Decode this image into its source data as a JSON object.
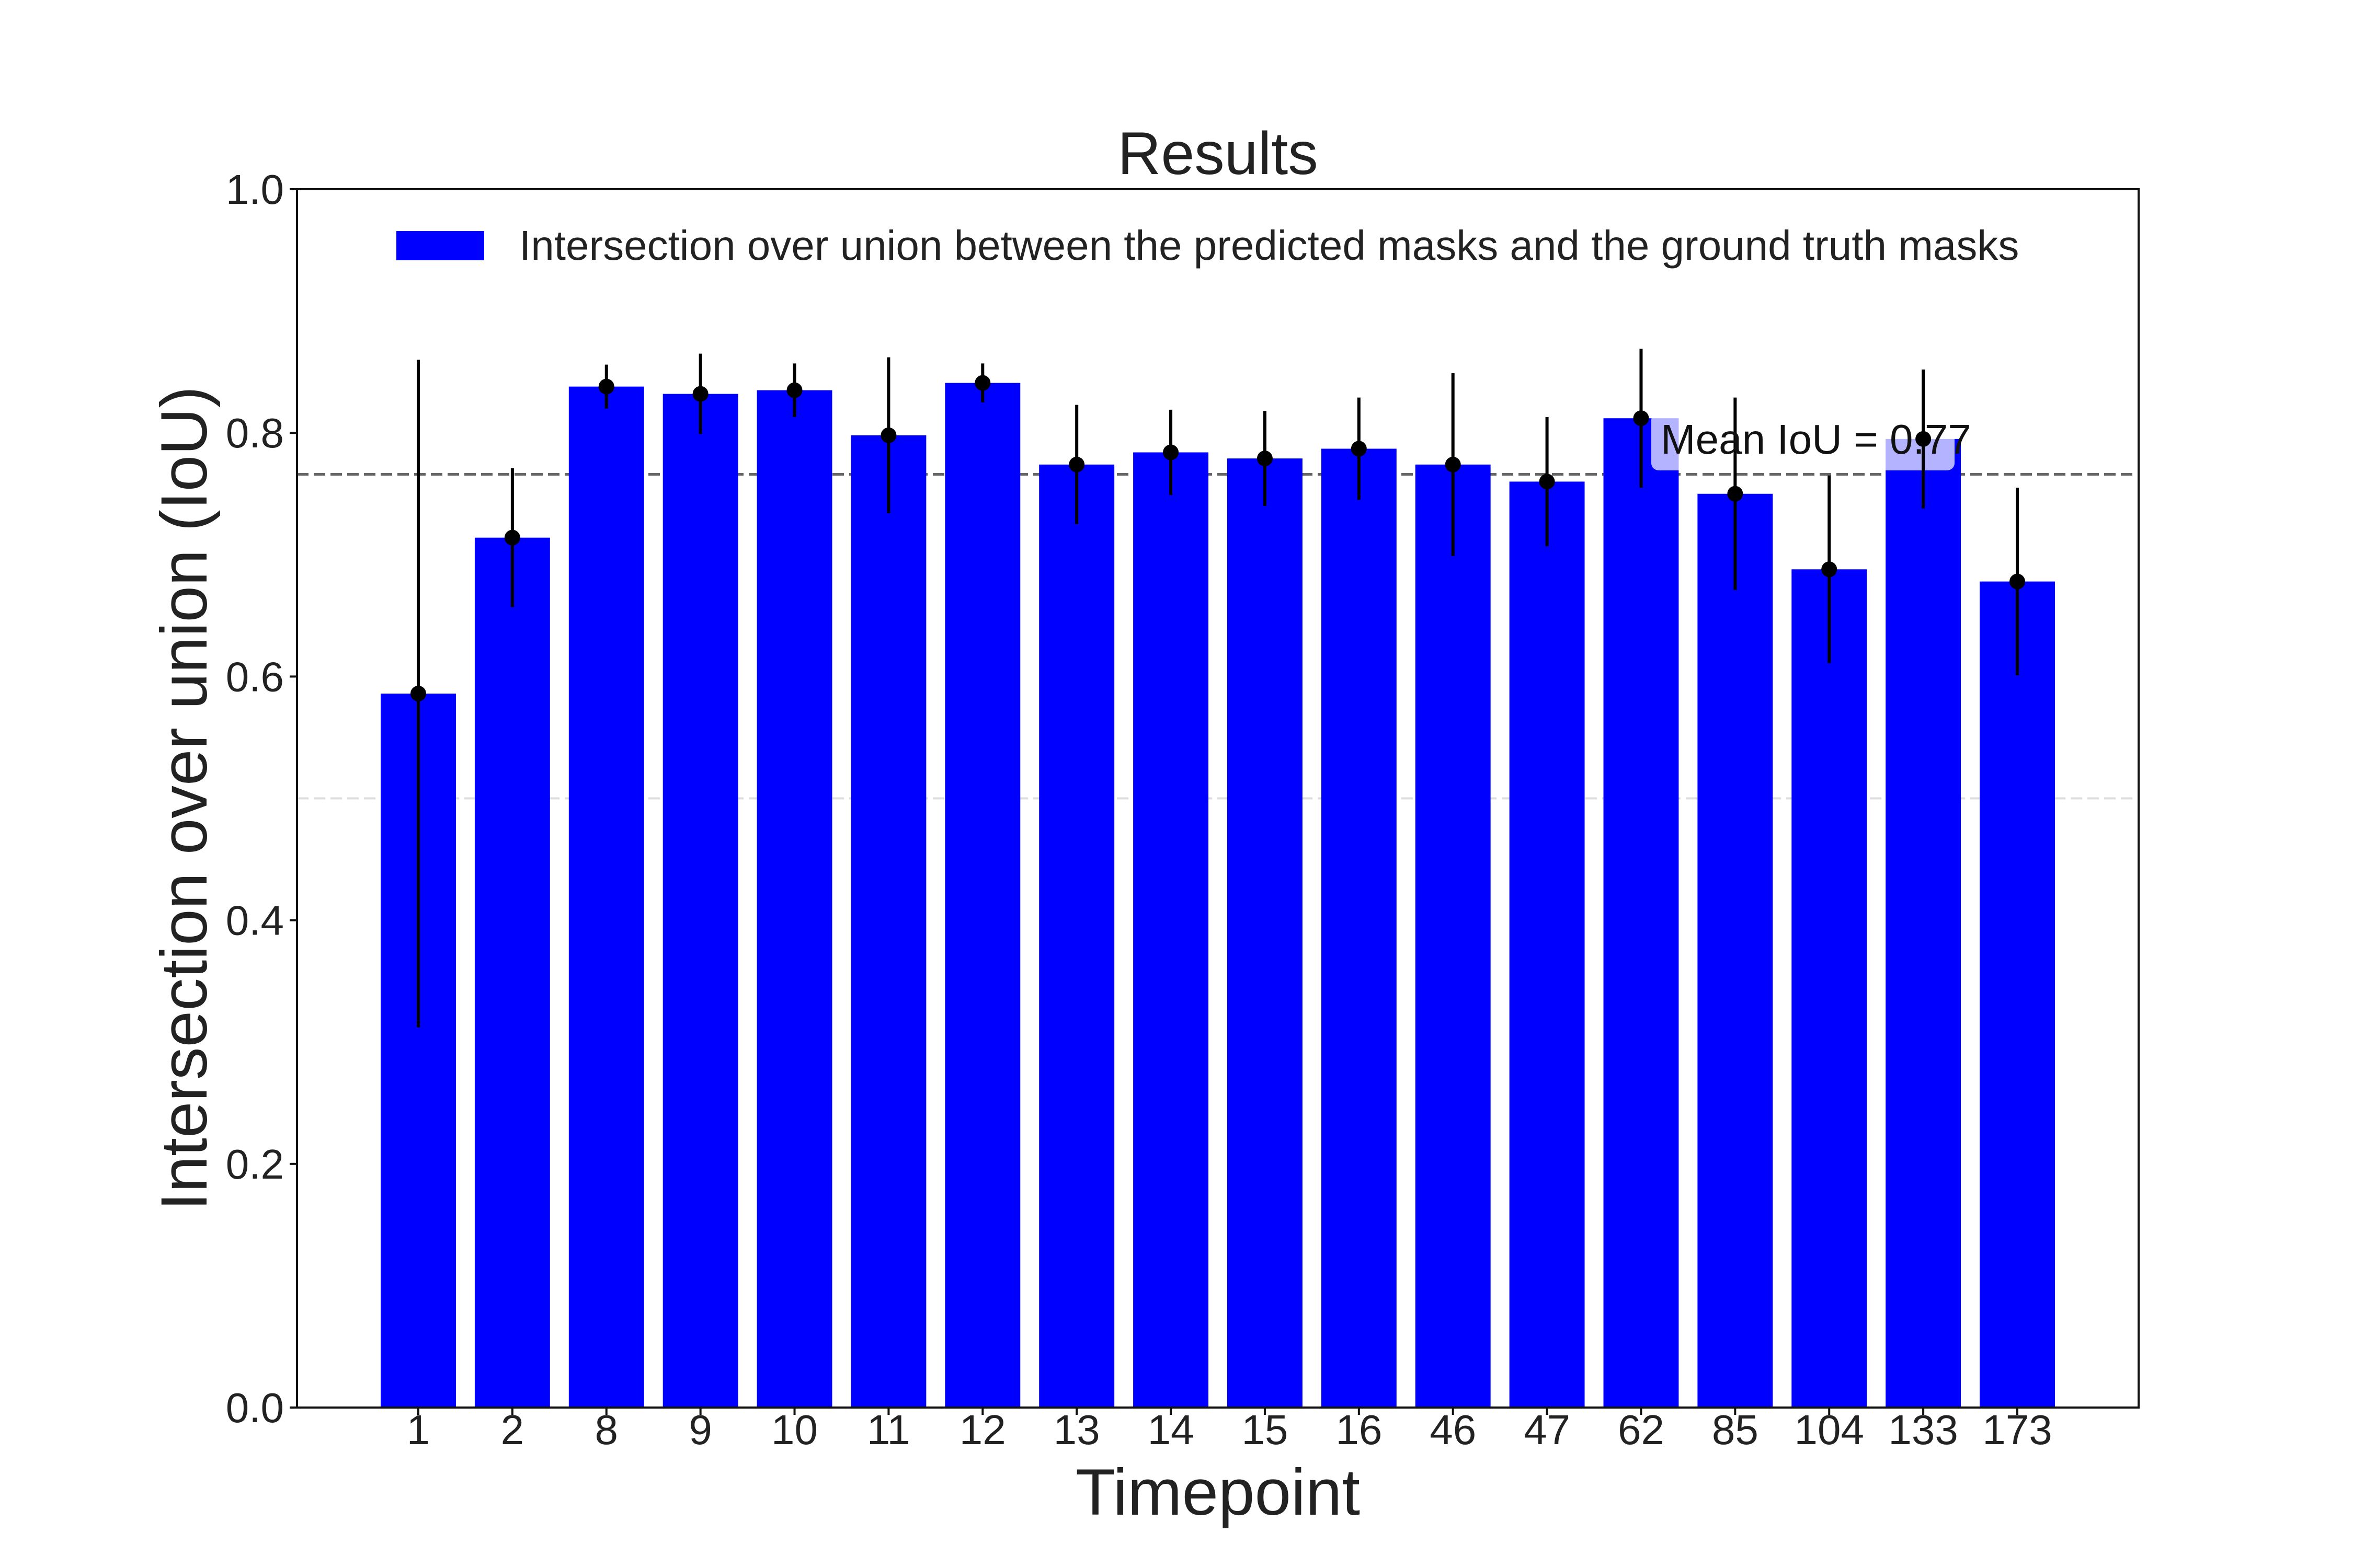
{
  "chart_data": {
    "type": "bar",
    "title": "Results",
    "xlabel": "Timepoint",
    "ylabel": "Intersection over union (IoU)",
    "categories": [
      "1",
      "2",
      "8",
      "9",
      "10",
      "11",
      "12",
      "13",
      "14",
      "15",
      "16",
      "46",
      "47",
      "62",
      "85",
      "104",
      "133",
      "173"
    ],
    "series": [
      {
        "name": "Intersection over union between the predicted masks and the ground truth masks",
        "values": [
          0.586,
          0.714,
          0.838,
          0.832,
          0.835,
          0.798,
          0.841,
          0.774,
          0.784,
          0.779,
          0.787,
          0.774,
          0.76,
          0.812,
          0.75,
          0.688,
          0.795,
          0.678
        ],
        "errors": [
          0.274,
          0.057,
          0.018,
          0.033,
          0.022,
          0.064,
          0.016,
          0.049,
          0.035,
          0.039,
          0.042,
          0.075,
          0.053,
          0.057,
          0.079,
          0.077,
          0.057,
          0.077
        ],
        "color": "#0000ff"
      }
    ],
    "ylim": [
      0,
      1.0
    ],
    "yticks": [
      "0.0",
      "0.2",
      "0.4",
      "0.6",
      "0.8",
      "1.0"
    ],
    "reference_lines": [
      {
        "y": 0.766,
        "color": "#666666"
      },
      {
        "y": 0.5,
        "color": "#dddddd"
      }
    ],
    "annotation": {
      "text": "Mean IoU = 0.77",
      "y": 0.766,
      "category_span": [
        "62",
        "133"
      ]
    },
    "legend": {
      "position": "top"
    },
    "grid": false
  }
}
